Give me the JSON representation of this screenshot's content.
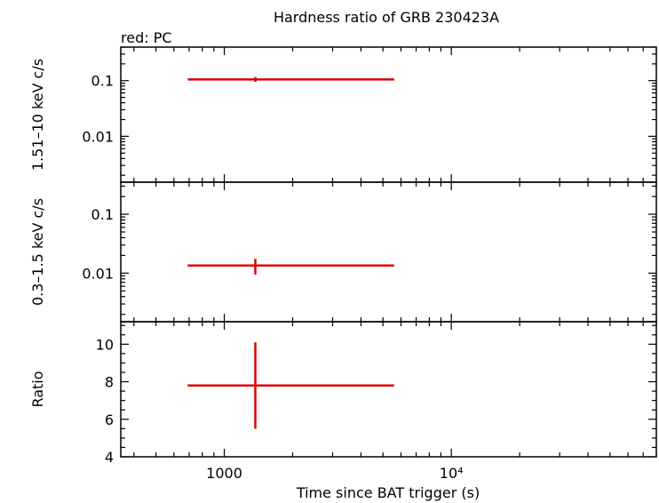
{
  "title": "Hardness ratio of GRB 230423A",
  "legend": "red: PC",
  "xlabel": "Time since BAT trigger (s)",
  "x_tick_labels": [
    "1000",
    "10⁴"
  ],
  "colors": {
    "series": "#e00000",
    "axes": "#000000"
  },
  "chart_data": [
    {
      "type": "scatter",
      "panel": "hard",
      "ylabel": "1.51–10 keV c/s",
      "yscale": "log",
      "ylim": [
        0.0015,
        0.4
      ],
      "ytick_labels": [
        "0.1",
        "0.01"
      ],
      "xscale": "log",
      "xlim": [
        350,
        80000
      ],
      "series": [
        {
          "name": "PC",
          "points": [
            {
              "x": 1370,
              "xmin": 690,
              "xmax": 5600,
              "y": 0.105,
              "ymin": 0.095,
              "ymax": 0.116
            }
          ]
        }
      ]
    },
    {
      "type": "scatter",
      "panel": "soft",
      "ylabel": "0.3–1.5 keV c/s",
      "yscale": "log",
      "ylim": [
        0.0015,
        0.35
      ],
      "ytick_labels": [
        "0.1",
        "0.01"
      ],
      "xscale": "log",
      "xlim": [
        350,
        80000
      ],
      "series": [
        {
          "name": "PC",
          "points": [
            {
              "x": 1370,
              "xmin": 690,
              "xmax": 5600,
              "y": 0.0135,
              "ymin": 0.0095,
              "ymax": 0.0175
            }
          ]
        }
      ]
    },
    {
      "type": "scatter",
      "panel": "ratio",
      "ylabel": "Ratio",
      "yscale": "linear",
      "ylim": [
        4,
        11.2
      ],
      "ytick_labels": [
        "4",
        "6",
        "8",
        "10"
      ],
      "xscale": "log",
      "xlim": [
        350,
        80000
      ],
      "series": [
        {
          "name": "PC",
          "points": [
            {
              "x": 1370,
              "xmin": 690,
              "xmax": 5600,
              "y": 7.8,
              "ymin": 5.5,
              "ymax": 10.1
            }
          ]
        }
      ]
    }
  ]
}
